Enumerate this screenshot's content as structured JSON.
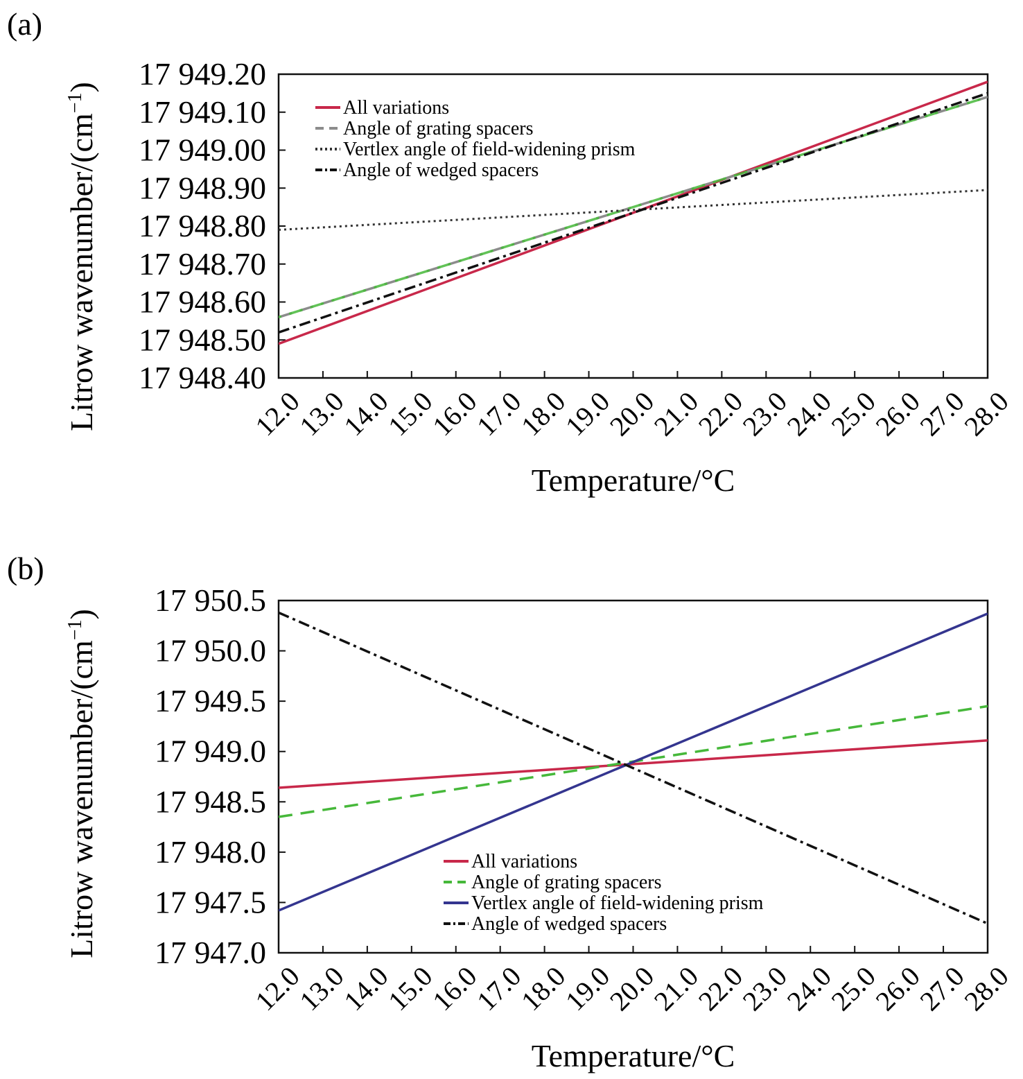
{
  "chart_data": [
    {
      "type": "line",
      "panel_label": "(a)",
      "title": "",
      "xlabel": "Temperature/°C",
      "ylabel": "Litrow wavenumber/(cm",
      "ylabel_sup": "−1",
      "ylabel_close": ")",
      "xlim": [
        12,
        28
      ],
      "ylim": [
        17948.4,
        17949.2
      ],
      "x_ticks": [
        12,
        13,
        14,
        15,
        16,
        17,
        18,
        19,
        20,
        21,
        22,
        23,
        24,
        25,
        26,
        27,
        28
      ],
      "x_tick_labels": [
        "12.0",
        "13.0",
        "14.0",
        "15.0",
        "16.0",
        "17.0",
        "18.0",
        "19.0",
        "20.0",
        "21.0",
        "22.0",
        "23.0",
        "24.0",
        "25.0",
        "26.0",
        "27.0",
        "28.0"
      ],
      "y_ticks": [
        17948.4,
        17948.5,
        17948.6,
        17948.7,
        17948.8,
        17948.9,
        17949.0,
        17949.1,
        17949.2
      ],
      "y_tick_labels": [
        "17 948.40",
        "17 948.50",
        "17 948.60",
        "17 948.70",
        "17 948.80",
        "17 948.90",
        "17 949.00",
        "17 949.10",
        "17 949.20"
      ],
      "legend_position": "top-left",
      "grid": false,
      "x": [
        12,
        28
      ],
      "series": [
        {
          "name": "All variations",
          "values": [
            17948.49,
            17949.18
          ],
          "color": "#c8284a",
          "style": "solid"
        },
        {
          "name": "Angle of grating spacers",
          "values": [
            17948.56,
            17949.14
          ],
          "color": "#8c8c8c",
          "overlay_color": "#46b83a",
          "style": "dashed"
        },
        {
          "name": "Vertlex angle of field-widening prism",
          "values": [
            17948.79,
            17948.895
          ],
          "color": "#333333",
          "style": "dotted"
        },
        {
          "name": "Angle of wedged spacers",
          "values": [
            17948.52,
            17949.15
          ],
          "color": "#111111",
          "style": "dashdot"
        }
      ]
    },
    {
      "type": "line",
      "panel_label": "(b)",
      "title": "",
      "xlabel": "Temperature/°C",
      "ylabel": "Litrow wavenumber/(cm",
      "ylabel_sup": "−1",
      "ylabel_close": ")",
      "xlim": [
        12,
        28
      ],
      "ylim": [
        17947.0,
        17950.5
      ],
      "x_ticks": [
        12,
        13,
        14,
        15,
        16,
        17,
        18,
        19,
        20,
        21,
        22,
        23,
        24,
        25,
        26,
        27,
        28
      ],
      "x_tick_labels": [
        "12.0",
        "13.0",
        "14.0",
        "15.0",
        "16.0",
        "17.0",
        "18.0",
        "19.0",
        "20.0",
        "21.0",
        "22.0",
        "23.0",
        "24.0",
        "25.0",
        "26.0",
        "27.0",
        "28.0"
      ],
      "y_ticks": [
        17947.0,
        17947.5,
        17948.0,
        17948.5,
        17949.0,
        17949.5,
        17950.0,
        17950.5
      ],
      "y_tick_labels": [
        "17 947.0",
        "17 947.5",
        "17 948.0",
        "17 948.5",
        "17 949.0",
        "17 949.5",
        "17 950.0",
        "17 950.5"
      ],
      "legend_position": "bottom-center",
      "grid": false,
      "x": [
        12,
        28
      ],
      "series": [
        {
          "name": "All variations",
          "values": [
            17948.64,
            17949.11
          ],
          "color": "#c8284a",
          "style": "solid"
        },
        {
          "name": "Angle of grating spacers",
          "values": [
            17948.35,
            17949.45
          ],
          "color": "#46b83a",
          "style": "dashed"
        },
        {
          "name": "Vertlex angle of field-widening prism",
          "values": [
            17947.42,
            17950.37
          ],
          "color": "#34358f",
          "style": "solid"
        },
        {
          "name": "Angle of wedged spacers",
          "values": [
            17950.38,
            17947.29
          ],
          "color": "#111111",
          "style": "dashdot"
        }
      ]
    }
  ]
}
